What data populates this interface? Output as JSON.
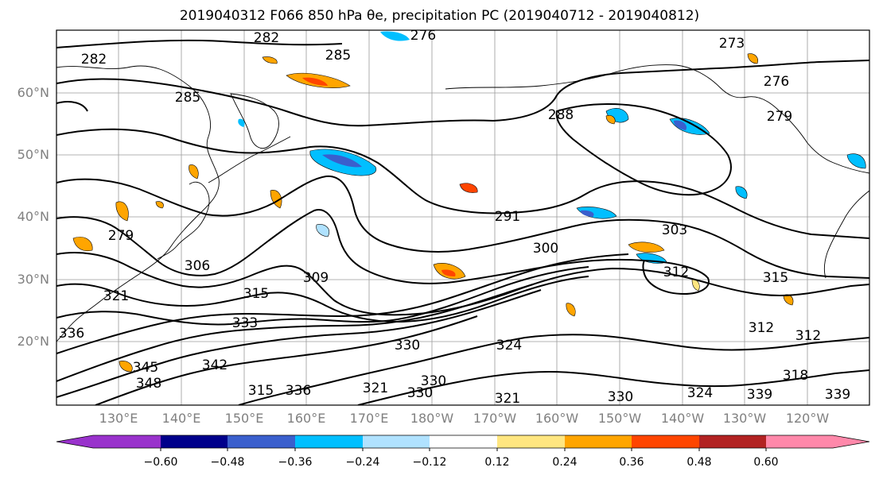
{
  "title": "2019040312 F066 850 hPa θe, precipitation PC (2019040712 - 2019040812)",
  "lat_labels": [
    "60°N",
    "50°N",
    "40°N",
    "30°N",
    "20°N"
  ],
  "lon_labels": [
    "130°E",
    "140°E",
    "150°E",
    "160°E",
    "170°E",
    "180°W",
    "170°W",
    "160°W",
    "150°W",
    "140°W",
    "130°W",
    "120°W"
  ],
  "colorbar": {
    "ticks": [
      "−0.60",
      "−0.48",
      "−0.36",
      "−0.24",
      "−0.12",
      "0.12",
      "0.24",
      "0.36",
      "0.48",
      "0.60"
    ],
    "colors": [
      "#9932cc",
      "#00008b",
      "#3a5fcd",
      "#00bfff",
      "#b0e2ff",
      "#ffffff",
      "#ffe680",
      "#ffa500",
      "#ff4500",
      "#b22222",
      "#ff88aa"
    ]
  },
  "contour_labels": [
    "282",
    "276",
    "285",
    "273",
    "282",
    "276",
    "285",
    "279",
    "288",
    "291",
    "279",
    "306",
    "303",
    "300",
    "312",
    "315",
    "309",
    "315",
    "321",
    "333",
    "336",
    "312",
    "312",
    "330",
    "324",
    "342",
    "345",
    "348",
    "318",
    "315",
    "336",
    "330",
    "321",
    "321",
    "330",
    "324",
    "339",
    "330",
    "339"
  ]
}
